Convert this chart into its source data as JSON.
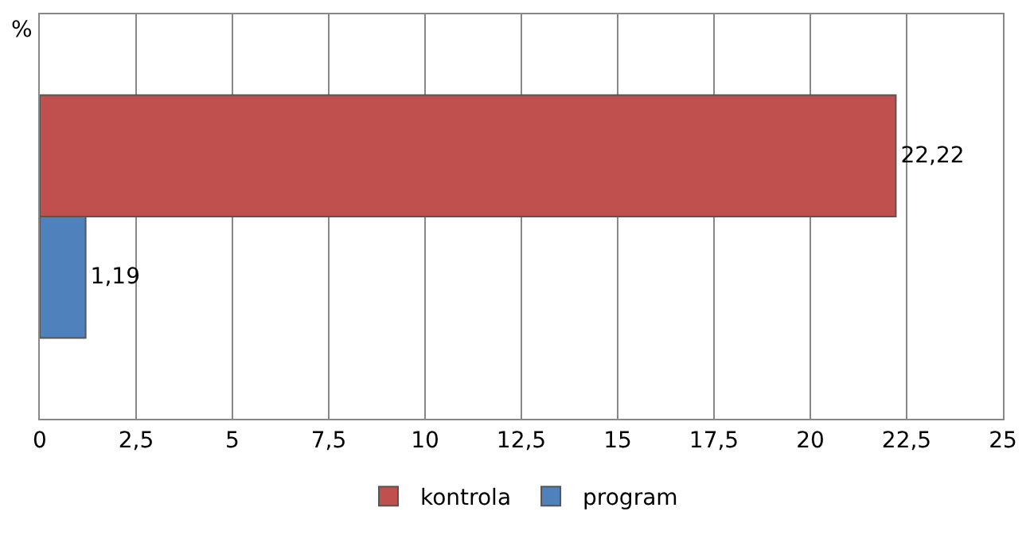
{
  "chart_data": {
    "type": "bar",
    "orientation": "horizontal",
    "categories": [
      null
    ],
    "series": [
      {
        "name": "kontrola",
        "color": "#c0504d",
        "values": [
          22.22
        ],
        "value_labels": [
          "22,22"
        ]
      },
      {
        "name": "program",
        "color": "#4f81bd",
        "values": [
          1.19
        ],
        "value_labels": [
          "1,19"
        ]
      }
    ],
    "xlim": [
      0,
      25
    ],
    "xticks": [
      0,
      {
        "value": 2.5,
        "label": "2,5"
      },
      5,
      {
        "value": 7.5,
        "label": "7,5"
      },
      10,
      {
        "value": 12.5,
        "label": "12,5"
      },
      15,
      {
        "value": 17.5,
        "label": "17,5"
      },
      20,
      {
        "value": 22.5,
        "label": "22,5"
      },
      25
    ],
    "annotations": [
      "%"
    ],
    "grid": "x",
    "legend": "bottom"
  }
}
